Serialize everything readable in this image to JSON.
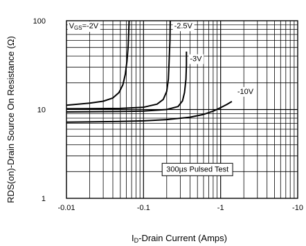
{
  "chart_data": {
    "type": "line",
    "xlabel": {
      "prefix": "I",
      "subscript": "D",
      "rest": "-Drain Current (Amps)"
    },
    "ylabel": "RDS(on)-Drain Source On Resistance  (Ω)",
    "x_scale": "log",
    "y_scale": "log",
    "xlim": [
      0.01,
      10
    ],
    "ylim": [
      1,
      100
    ],
    "x_tick_values": [
      0.01,
      0.1,
      1,
      10
    ],
    "x_tick_labels": [
      "-0.01",
      "-0.1",
      "-1",
      "-10"
    ],
    "y_tick_values": [
      1,
      10,
      100
    ],
    "y_tick_labels": [
      "1",
      "10",
      "100"
    ],
    "grid": true,
    "annotation": "300µs Pulsed Test",
    "series": [
      {
        "name": "VGS=-2V",
        "label_main": "V",
        "label_sub": "GS",
        "label_rest": "=-2V",
        "color": "#000000",
        "x": [
          0.01,
          0.02,
          0.03,
          0.04,
          0.048,
          0.054,
          0.058,
          0.061,
          0.063,
          0.064,
          0.065
        ],
        "y": [
          11.2,
          11.8,
          12.4,
          13.5,
          15.5,
          19,
          25,
          35,
          50,
          70,
          100
        ]
      },
      {
        "name": "-2.5V",
        "label_main": "-2.5V",
        "label_sub": "",
        "label_rest": "",
        "color": "#000000",
        "x": [
          0.01,
          0.05,
          0.1,
          0.15,
          0.18,
          0.2,
          0.21,
          0.215,
          0.22,
          0.222
        ],
        "y": [
          10.2,
          10.3,
          10.6,
          11.5,
          13,
          16,
          22,
          35,
          60,
          100
        ]
      },
      {
        "name": "-3V",
        "label_main": "-3V",
        "label_sub": "",
        "label_rest": "",
        "color": "#000000",
        "x": [
          0.01,
          0.05,
          0.1,
          0.2,
          0.28,
          0.32,
          0.34,
          0.355,
          0.36,
          0.36
        ],
        "y": [
          9.4,
          9.5,
          9.6,
          10.0,
          10.8,
          12.5,
          15.5,
          22,
          32,
          45
        ]
      },
      {
        "name": "-10V",
        "label_main": "-10V",
        "label_sub": "",
        "label_rest": "",
        "color": "#000000",
        "x": [
          0.01,
          0.05,
          0.1,
          0.2,
          0.4,
          0.6,
          0.8,
          1.0,
          1.2,
          1.4
        ],
        "y": [
          7.2,
          7.35,
          7.45,
          7.7,
          8.2,
          8.8,
          9.6,
          10.5,
          11.4,
          12.3
        ]
      }
    ]
  }
}
